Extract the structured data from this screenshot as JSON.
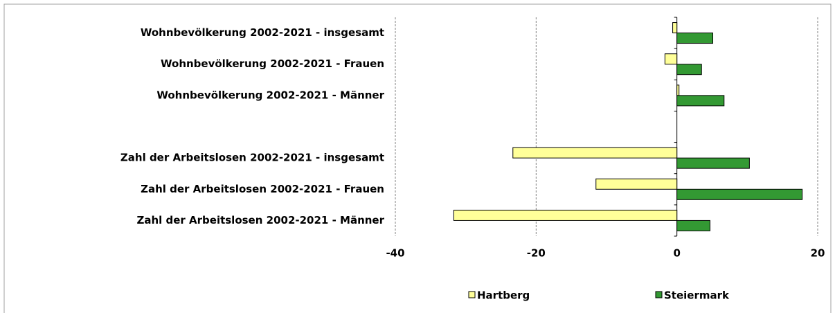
{
  "chart_data": {
    "type": "hbar",
    "categories": [
      "Wohnbevölkerung 2002-2021 - insgesamt",
      "Wohnbevölkerung 2002-2021 - Frauen",
      "Wohnbevölkerung 2002-2021 - Männer",
      null,
      "Zahl der Arbeitslosen 2002-2021 - insgesamt",
      "Zahl der Arbeitslosen 2002-2021 - Frauen",
      "Zahl der Arbeitslosen 2002-2021 - Männer"
    ],
    "series": [
      {
        "name": "Hartberg",
        "color": "#ffff99",
        "values": [
          -0.6,
          -1.7,
          0.3,
          null,
          -23.3,
          -11.5,
          -31.7
        ]
      },
      {
        "name": "Steiermark",
        "color": "#339933",
        "values": [
          5.1,
          3.5,
          6.7,
          null,
          10.3,
          17.8,
          4.7
        ]
      }
    ],
    "xlim": [
      -40,
      20
    ],
    "xticks": [
      -40,
      -20,
      0,
      20
    ],
    "grid": true,
    "legend": "bottom"
  }
}
